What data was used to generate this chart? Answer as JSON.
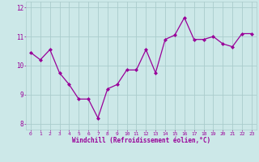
{
  "x": [
    0,
    1,
    2,
    3,
    4,
    5,
    6,
    7,
    8,
    9,
    10,
    11,
    12,
    13,
    14,
    15,
    16,
    17,
    18,
    19,
    20,
    21,
    22,
    23
  ],
  "y": [
    10.45,
    10.2,
    10.55,
    9.75,
    9.35,
    8.85,
    8.85,
    8.2,
    9.2,
    9.35,
    9.85,
    9.85,
    10.55,
    9.75,
    10.9,
    11.05,
    11.65,
    10.9,
    10.9,
    11.0,
    10.75,
    10.65,
    11.1,
    11.1
  ],
  "line_color": "#990099",
  "marker": "D",
  "marker_size": 2.0,
  "linewidth": 0.9,
  "background_color": "#cce8e8",
  "grid_color": "#aacccc",
  "tick_color": "#990099",
  "label_color": "#990099",
  "xlabel": "Windchill (Refroidissement éolien,°C)",
  "ylim": [
    7.8,
    12.2
  ],
  "yticks": [
    8,
    9,
    10,
    11,
    12
  ],
  "xticks": [
    0,
    1,
    2,
    3,
    4,
    5,
    6,
    7,
    8,
    9,
    10,
    11,
    12,
    13,
    14,
    15,
    16,
    17,
    18,
    19,
    20,
    21,
    22,
    23
  ],
  "xlim": [
    -0.5,
    23.5
  ]
}
